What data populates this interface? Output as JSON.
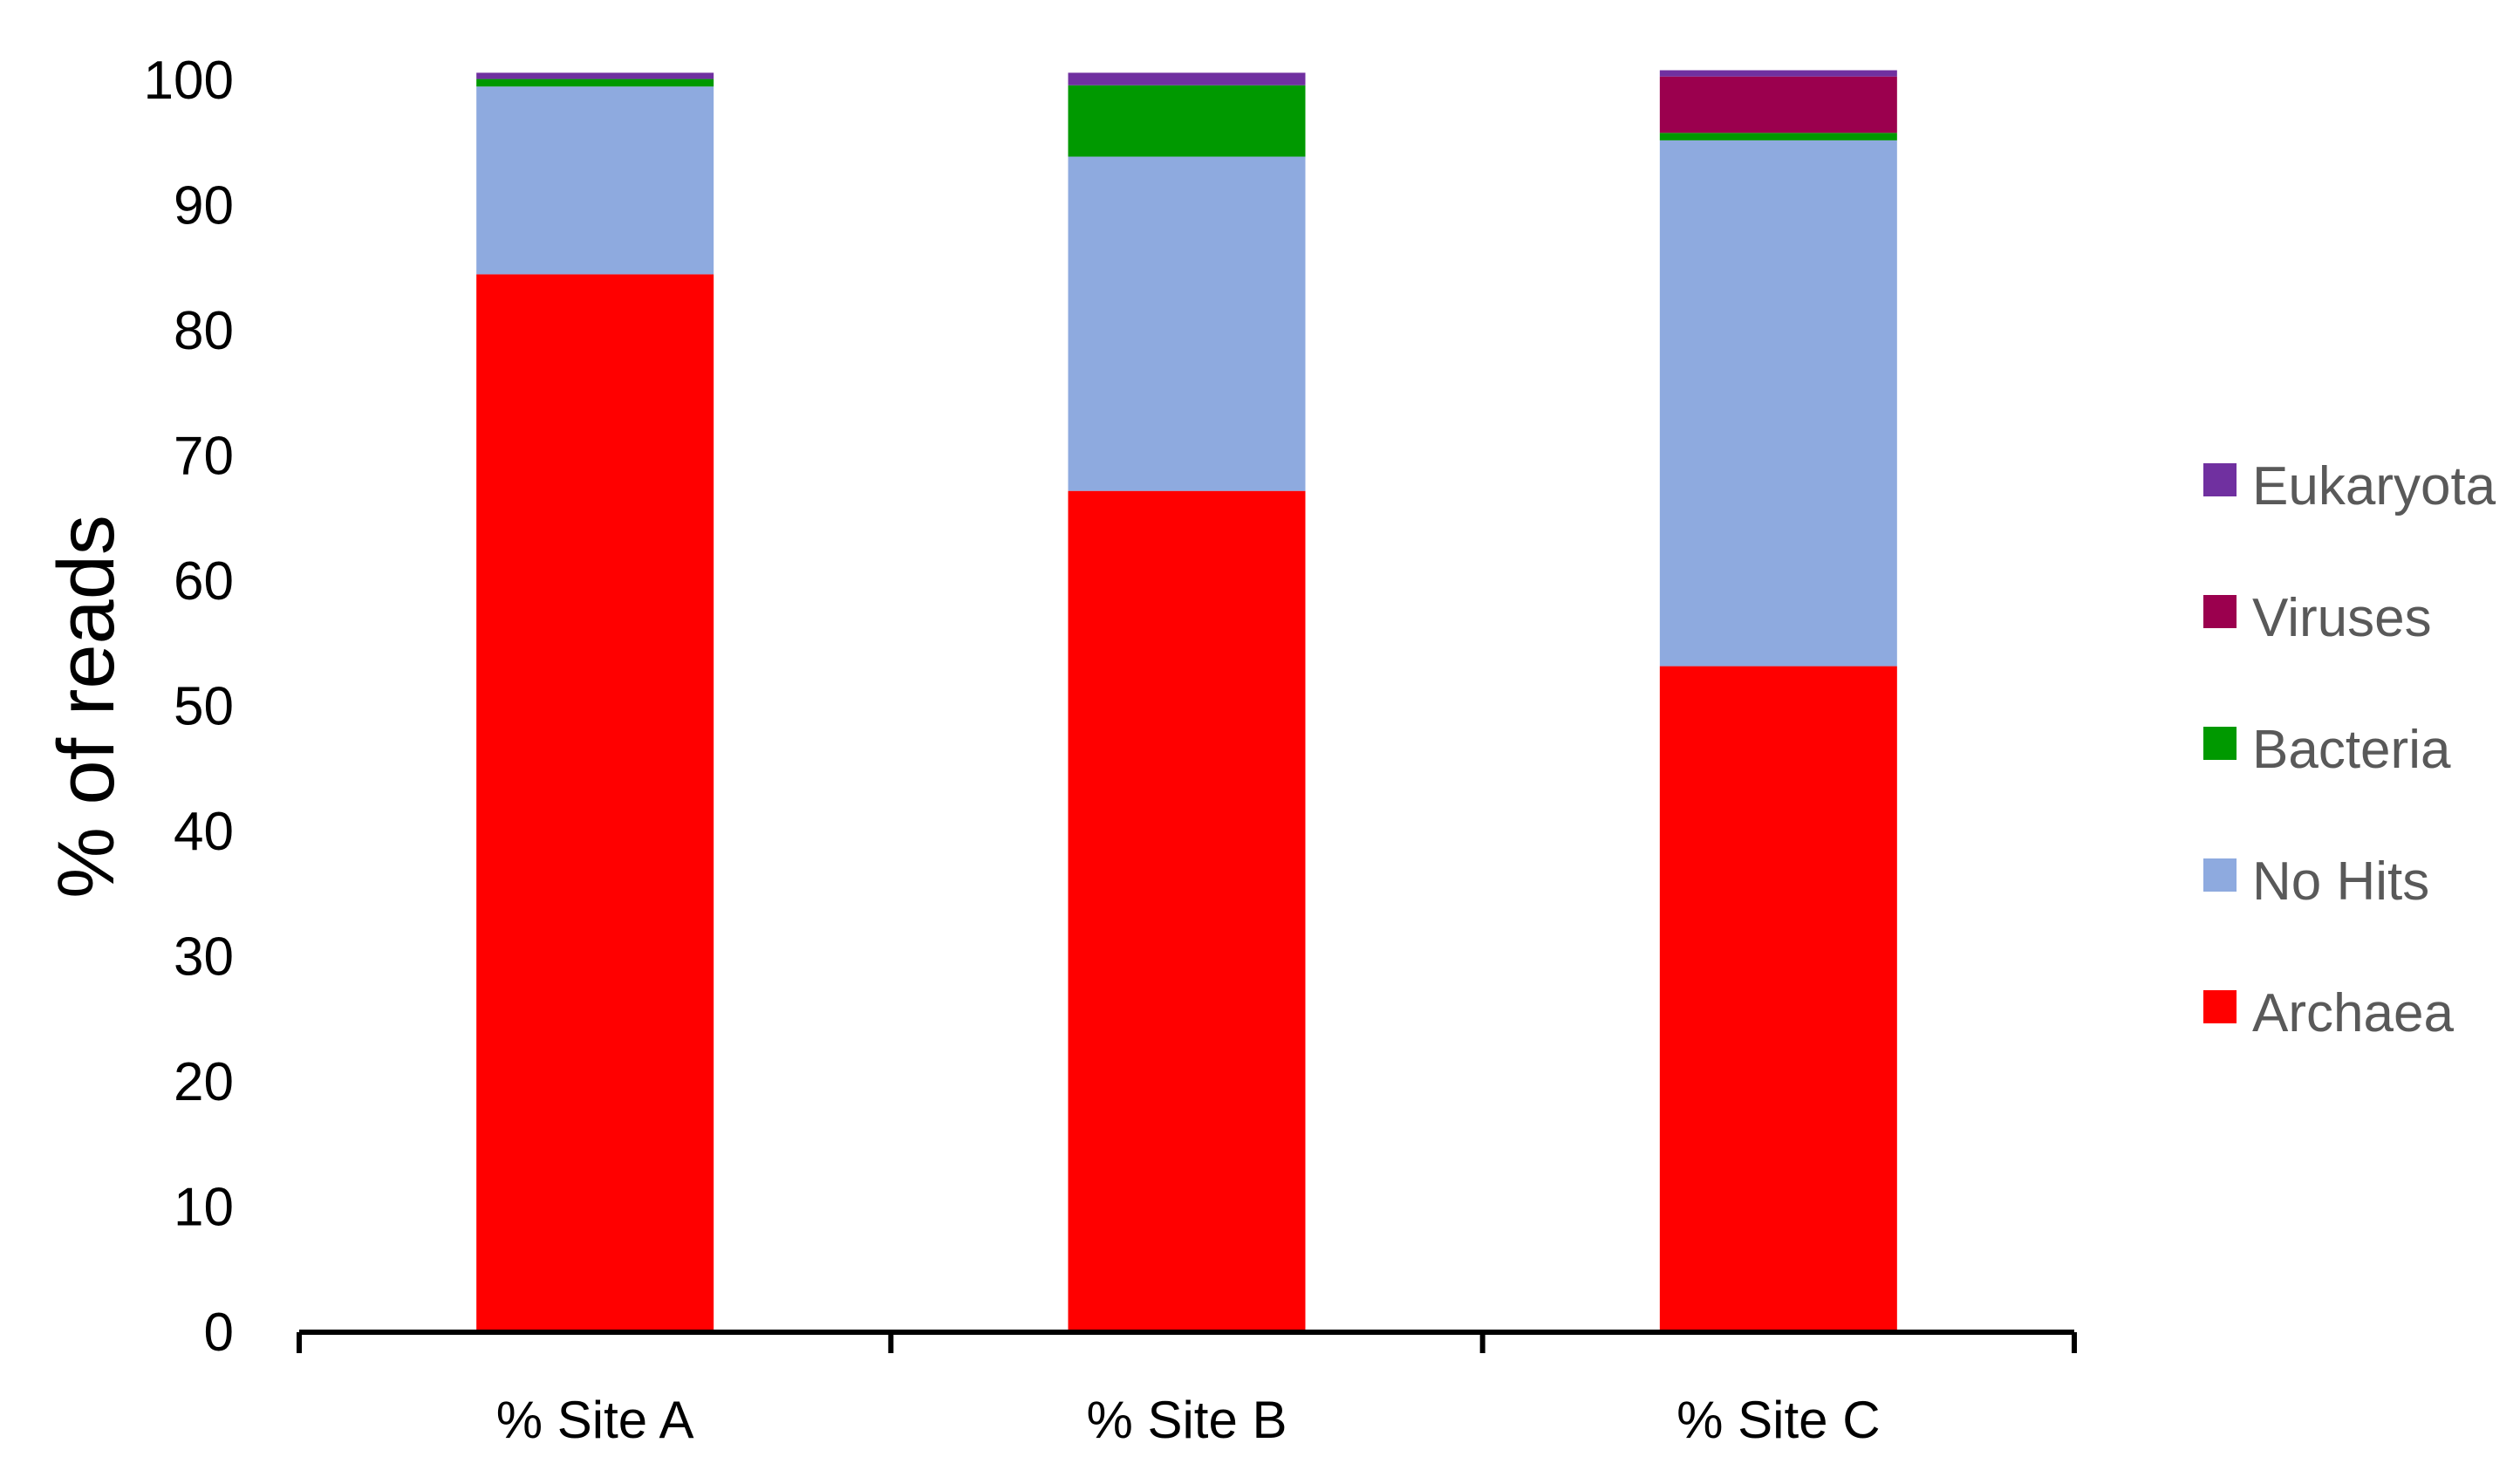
{
  "chart_data": {
    "type": "bar",
    "stacked": true,
    "categories": [
      "% Site A",
      "% Site B",
      "% Site C"
    ],
    "series": [
      {
        "name": "Archaea",
        "color": "#ff0000",
        "values": [
          84.5,
          67.2,
          53.2
        ]
      },
      {
        "name": "No Hits",
        "color": "#8eaadf",
        "values": [
          15.0,
          26.7,
          42.0
        ]
      },
      {
        "name": "Bacteria",
        "color": "#009900",
        "values": [
          0.6,
          5.7,
          0.6
        ]
      },
      {
        "name": "Viruses",
        "color": "#9b004e",
        "values": [
          0.0,
          0.0,
          4.5
        ]
      },
      {
        "name": "Eukaryota",
        "color": "#7030a0",
        "values": [
          0.5,
          1.0,
          0.5
        ]
      }
    ],
    "title": "",
    "xlabel": "",
    "ylabel": "% of reads",
    "ylim": [
      0,
      100
    ],
    "yticks": [
      "0",
      "10",
      "20",
      "30",
      "40",
      "50",
      "60",
      "70",
      "80",
      "90",
      "100"
    ],
    "grid": false,
    "legend": {
      "placement": "right",
      "order": [
        "Eukaryota",
        "Viruses",
        "Bacteria",
        "No Hits",
        "Archaea"
      ]
    }
  }
}
